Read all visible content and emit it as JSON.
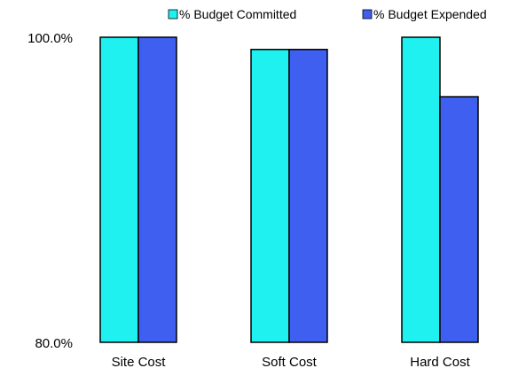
{
  "chart_data": {
    "type": "bar",
    "title": "",
    "xlabel": "",
    "ylabel": "",
    "categories": [
      "Site Cost",
      "Soft Cost",
      "Hard Cost"
    ],
    "series": [
      {
        "name": "% Budget Committed",
        "color": "#1FF0F0",
        "values": [
          100.0,
          99.2,
          100.0
        ]
      },
      {
        "name": "% Budget Expended",
        "color": "#3F5FF0",
        "values": [
          100.0,
          99.2,
          96.1
        ]
      }
    ],
    "ylim": [
      80,
      100
    ],
    "y_ticks": [
      "80.0%",
      "100.0%"
    ],
    "y_tick_values": [
      80,
      100
    ],
    "grid": false,
    "legend_position": "top"
  }
}
